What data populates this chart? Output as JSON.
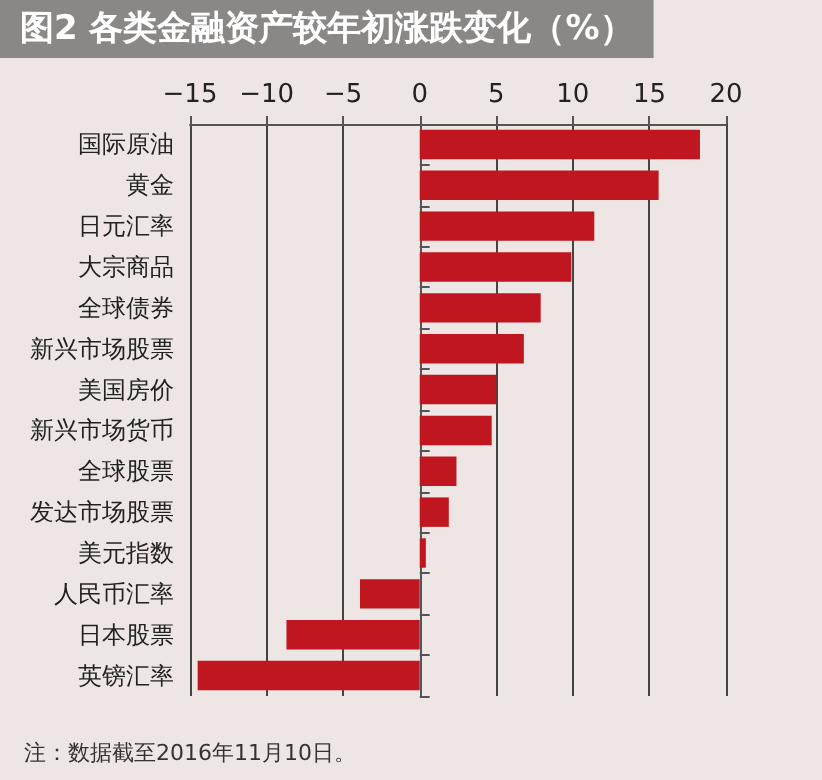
{
  "chart_data": {
    "type": "bar",
    "orientation": "horizontal",
    "title": "图2 各类金融资产较年初涨跌变化（%）",
    "categories": [
      "国际原油",
      "黄金",
      "日元汇率",
      "大宗商品",
      "全球债券",
      "新兴市场股票",
      "美国房价",
      "新兴市场货币",
      "全球股票",
      "发达市场股票",
      "美元指数",
      "人民币汇率",
      "日本股票",
      "英镑汇率"
    ],
    "values": [
      18.3,
      15.6,
      11.4,
      9.9,
      7.9,
      6.8,
      5.0,
      4.7,
      2.4,
      1.9,
      0.4,
      -3.9,
      -8.7,
      -14.5
    ],
    "color": "#c0161f",
    "xlim": [
      -15,
      20
    ],
    "xticks": [
      -15,
      -10,
      -5,
      0,
      5,
      10,
      15,
      20
    ],
    "grid": "x",
    "annotations": [
      "注：数据截至2016年11月10日。"
    ]
  }
}
